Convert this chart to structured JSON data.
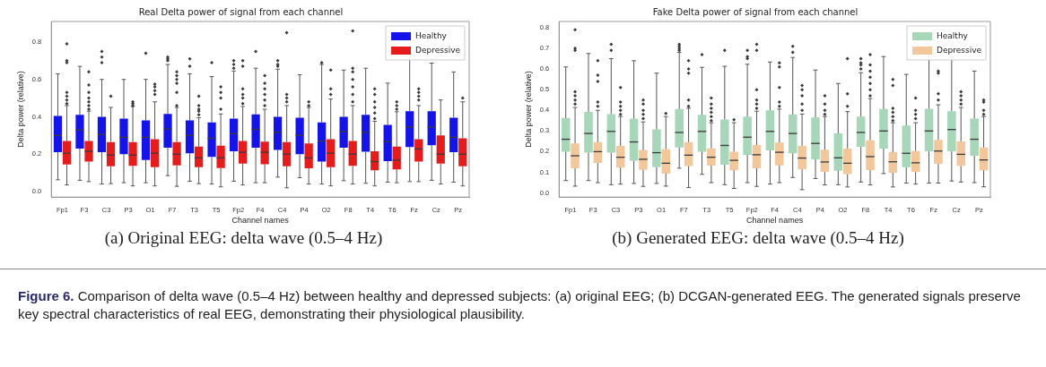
{
  "chart_data": [
    {
      "type": "box",
      "title": "Real Delta power of signal from each channel",
      "xlabel": "Channel names",
      "ylabel": "Delta power (relative)",
      "categories": [
        "Fp1",
        "F3",
        "C3",
        "P3",
        "O1",
        "F7",
        "T3",
        "T5",
        "Fp2",
        "F4",
        "C4",
        "P4",
        "O2",
        "F8",
        "T4",
        "T6",
        "Fz",
        "Cz",
        "Pz"
      ],
      "ylim": [
        -0.03,
        0.91
      ],
      "yticks": [
        {
          "value": 0,
          "label": "0.0"
        },
        {
          "value": 0.2,
          "label": "0.2"
        },
        {
          "value": 0.4,
          "label": "0.4"
        },
        {
          "value": 0.6,
          "label": "0.6"
        },
        {
          "value": 0.8,
          "label": "0.8"
        }
      ],
      "legend": "top right",
      "grid": false,
      "series": [
        {
          "name": "Healthy",
          "color": "#1414e8",
          "boxes": [
            {
              "low": 0.063,
              "q1": 0.21,
              "median": 0.3,
              "q3": 0.405,
              "high": 0.63
            },
            {
              "low": 0.06,
              "q1": 0.23,
              "median": 0.33,
              "q3": 0.41,
              "high": 0.67
            },
            {
              "low": 0.04,
              "q1": 0.21,
              "median": 0.305,
              "q3": 0.4,
              "high": 0.6,
              "outliers": [
                0.69,
                0.72,
                0.75
              ]
            },
            {
              "low": 0.047,
              "q1": 0.2,
              "median": 0.29,
              "q3": 0.39,
              "high": 0.6
            },
            {
              "low": 0.047,
              "q1": 0.168,
              "median": 0.29,
              "q3": 0.38,
              "high": 0.6,
              "outliers": [
                0.74
              ]
            },
            {
              "low": 0.085,
              "q1": 0.235,
              "median": 0.335,
              "q3": 0.415,
              "high": 0.68,
              "outliers": [
                0.7,
                0.71,
                0.72
              ]
            },
            {
              "low": 0.055,
              "q1": 0.205,
              "median": 0.3,
              "q3": 0.38,
              "high": 0.63,
              "outliers": [
                0.67,
                0.71
              ]
            },
            {
              "low": 0.04,
              "q1": 0.185,
              "median": 0.285,
              "q3": 0.37,
              "high": 0.615,
              "outliers": [
                0.69
              ]
            },
            {
              "low": 0.055,
              "q1": 0.215,
              "median": 0.31,
              "q3": 0.39,
              "high": 0.645,
              "outliers": [
                0.66,
                0.68,
                0.7
              ]
            },
            {
              "low": 0.047,
              "q1": 0.235,
              "median": 0.333,
              "q3": 0.413,
              "high": 0.66,
              "outliers": [
                0.75
              ]
            },
            {
              "low": 0.077,
              "q1": 0.223,
              "median": 0.317,
              "q3": 0.4,
              "high": 0.655,
              "outliers": [
                0.67,
                0.68,
                0.7
              ]
            },
            {
              "low": 0.074,
              "q1": 0.2,
              "median": 0.3,
              "q3": 0.395,
              "high": 0.625
            },
            {
              "low": 0.04,
              "q1": 0.16,
              "median": 0.27,
              "q3": 0.37,
              "high": 0.68,
              "outliers": [
                0.69
              ]
            },
            {
              "low": 0.058,
              "q1": 0.235,
              "median": 0.32,
              "q3": 0.4,
              "high": 0.65
            },
            {
              "low": 0.044,
              "q1": 0.213,
              "median": 0.317,
              "q3": 0.41,
              "high": 0.66
            },
            {
              "low": 0.05,
              "q1": 0.163,
              "median": 0.267,
              "q3": 0.357,
              "high": 0.58
            },
            {
              "low": 0.053,
              "q1": 0.238,
              "median": 0.345,
              "q3": 0.43,
              "high": 0.718
            },
            {
              "low": 0.06,
              "q1": 0.248,
              "median": 0.345,
              "q3": 0.43,
              "high": 0.687
            },
            {
              "low": 0.05,
              "q1": 0.21,
              "median": 0.29,
              "q3": 0.395,
              "high": 0.64
            }
          ]
        },
        {
          "name": "Depressive",
          "color": "#e51c1c",
          "boxes": [
            {
              "low": 0.035,
              "q1": 0.145,
              "median": 0.205,
              "q3": 0.27,
              "high": 0.46,
              "outliers": [
                0.47,
                0.49,
                0.51,
                0.53,
                0.69,
                0.7,
                0.79
              ]
            },
            {
              "low": 0.053,
              "q1": 0.16,
              "median": 0.215,
              "q3": 0.27,
              "high": 0.43,
              "outliers": [
                0.44,
                0.46,
                0.48,
                0.5,
                0.53,
                0.57,
                0.64
              ]
            },
            {
              "low": 0.042,
              "q1": 0.135,
              "median": 0.195,
              "q3": 0.265,
              "high": 0.45,
              "outliers": [
                0.51
              ]
            },
            {
              "low": 0.03,
              "q1": 0.138,
              "median": 0.195,
              "q3": 0.265,
              "high": 0.455,
              "outliers": [
                0.46,
                0.47,
                0.48
              ]
            },
            {
              "low": 0.03,
              "q1": 0.13,
              "median": 0.205,
              "q3": 0.28,
              "high": 0.48,
              "outliers": [
                0.52,
                0.54,
                0.56,
                0.575
              ]
            },
            {
              "low": 0.028,
              "q1": 0.14,
              "median": 0.2,
              "q3": 0.265,
              "high": 0.45,
              "outliers": [
                0.46,
                0.53,
                0.58,
                0.6,
                0.62,
                0.64
              ]
            },
            {
              "low": 0.042,
              "q1": 0.13,
              "median": 0.18,
              "q3": 0.24,
              "high": 0.395,
              "outliers": [
                0.41,
                0.43,
                0.44,
                0.46,
                0.51
              ]
            },
            {
              "low": 0.025,
              "q1": 0.125,
              "median": 0.18,
              "q3": 0.245,
              "high": 0.415,
              "outliers": [
                0.44,
                0.5,
                0.53,
                0.56
              ]
            },
            {
              "low": 0.035,
              "q1": 0.15,
              "median": 0.21,
              "q3": 0.27,
              "high": 0.455,
              "outliers": [
                0.47,
                0.5,
                0.52,
                0.55,
                0.67,
                0.7
              ]
            },
            {
              "low": 0.047,
              "q1": 0.146,
              "median": 0.21,
              "q3": 0.267,
              "high": 0.44,
              "outliers": [
                0.46,
                0.49,
                0.52,
                0.55,
                0.58,
                0.62
              ]
            },
            {
              "low": 0.02,
              "q1": 0.135,
              "median": 0.2,
              "q3": 0.265,
              "high": 0.46,
              "outliers": [
                0.48,
                0.5,
                0.52,
                0.85
              ]
            },
            {
              "low": 0.04,
              "q1": 0.124,
              "median": 0.18,
              "q3": 0.257,
              "high": 0.45,
              "outliers": [
                0.46,
                0.48
              ]
            },
            {
              "low": 0.03,
              "q1": 0.13,
              "median": 0.205,
              "q3": 0.28,
              "high": 0.495,
              "outliers": [
                0.52,
                0.55,
                0.65
              ]
            },
            {
              "low": 0.04,
              "q1": 0.137,
              "median": 0.2,
              "q3": 0.27,
              "high": 0.46,
              "outliers": [
                0.48,
                0.52,
                0.56,
                0.6,
                0.64,
                0.66,
                0.86
              ]
            },
            {
              "low": 0.03,
              "q1": 0.113,
              "median": 0.16,
              "q3": 0.215,
              "high": 0.376,
              "outliers": [
                0.39,
                0.42,
                0.45,
                0.48,
                0.52,
                0.55
              ]
            },
            {
              "low": 0.047,
              "q1": 0.118,
              "median": 0.168,
              "q3": 0.24,
              "high": 0.427,
              "outliers": [
                0.44,
                0.46,
                0.48
              ]
            },
            {
              "low": 0.053,
              "q1": 0.16,
              "median": 0.228,
              "q3": 0.28,
              "high": 0.46,
              "outliers": [
                0.49,
                0.51,
                0.53,
                0.55
              ]
            },
            {
              "low": 0.04,
              "q1": 0.15,
              "median": 0.2,
              "q3": 0.3,
              "high": 0.49
            },
            {
              "low": 0.03,
              "q1": 0.135,
              "median": 0.2,
              "q3": 0.285,
              "high": 0.48,
              "outliers": [
                0.5
              ]
            }
          ]
        }
      ],
      "annotations": [
        "(a) Original EEG: delta wave (0.5–4 Hz)",
        "Figure 6.",
        "Comparison of delta wave (0.5–4 Hz) between healthy and depressed subjects: (a) original EEG; (b) DCGAN-generated EEG. The generated signals preserve key spectral characteristics of real EEG, demonstrating their physiological plausibility."
      ]
    },
    {
      "type": "box",
      "title": "Fake Delta power of signal from each channel",
      "xlabel": "Channel names",
      "ylabel": "Delta power (relative)",
      "categories": [
        "Fp1",
        "F3",
        "C3",
        "P3",
        "O1",
        "F7",
        "T3",
        "T5",
        "Fp2",
        "F4",
        "C4",
        "P4",
        "O2",
        "F8",
        "T4",
        "T6",
        "Fz",
        "Cz",
        "Pz"
      ],
      "ylim": [
        -0.02,
        0.83
      ],
      "yticks": [
        {
          "value": 0,
          "label": "0.0"
        },
        {
          "value": 0.1,
          "label": "0.1"
        },
        {
          "value": 0.2,
          "label": "0.2"
        },
        {
          "value": 0.3,
          "label": "0.3"
        },
        {
          "value": 0.4,
          "label": "0.4"
        },
        {
          "value": 0.5,
          "label": "0.5"
        },
        {
          "value": 0.6,
          "label": "0.6"
        },
        {
          "value": 0.7,
          "label": "0.7"
        },
        {
          "value": 0.8,
          "label": "0.8"
        }
      ],
      "legend": "top right",
      "grid": false,
      "series": [
        {
          "name": "Healthy",
          "color": "#a7d6b9",
          "boxes": [
            {
              "low": 0.06,
              "q1": 0.2,
              "median": 0.26,
              "q3": 0.363,
              "high": 0.61
            },
            {
              "low": 0.06,
              "q1": 0.195,
              "median": 0.288,
              "q3": 0.392,
              "high": 0.675
            },
            {
              "low": 0.04,
              "q1": 0.195,
              "median": 0.298,
              "q3": 0.382,
              "high": 0.65,
              "outliers": [
                0.69,
                0.72
              ]
            },
            {
              "low": 0.046,
              "q1": 0.156,
              "median": 0.247,
              "q3": 0.36,
              "high": 0.64
            },
            {
              "low": 0.046,
              "q1": 0.125,
              "median": 0.195,
              "q3": 0.308,
              "high": 0.58
            },
            {
              "low": 0.12,
              "q1": 0.22,
              "median": 0.293,
              "q3": 0.407,
              "high": 0.68,
              "outliers": [
                0.69,
                0.7,
                0.71,
                0.72
              ]
            },
            {
              "low": 0.09,
              "q1": 0.2,
              "median": 0.298,
              "q3": 0.378,
              "high": 0.608,
              "outliers": [
                0.67
              ]
            },
            {
              "low": 0.04,
              "q1": 0.137,
              "median": 0.23,
              "q3": 0.356,
              "high": 0.613,
              "outliers": [
                0.69
              ]
            },
            {
              "low": 0.05,
              "q1": 0.185,
              "median": 0.27,
              "q3": 0.37,
              "high": 0.623,
              "outliers": [
                0.65,
                0.66,
                0.69
              ]
            },
            {
              "low": 0.043,
              "q1": 0.206,
              "median": 0.298,
              "q3": 0.4,
              "high": 0.634
            },
            {
              "low": 0.075,
              "q1": 0.192,
              "median": 0.288,
              "q3": 0.38,
              "high": 0.656,
              "outliers": [
                0.68,
                0.71
              ]
            },
            {
              "low": 0.07,
              "q1": 0.163,
              "median": 0.24,
              "q3": 0.365,
              "high": 0.595
            },
            {
              "low": 0.04,
              "q1": 0.108,
              "median": 0.17,
              "q3": 0.288,
              "high": 0.53
            },
            {
              "low": 0.053,
              "q1": 0.223,
              "median": 0.293,
              "q3": 0.37,
              "high": 0.582,
              "outliers": [
                0.6,
                0.62,
                0.63,
                0.65
              ]
            },
            {
              "low": 0.094,
              "q1": 0.215,
              "median": 0.3,
              "q3": 0.406,
              "high": 0.66
            },
            {
              "low": 0.048,
              "q1": 0.125,
              "median": 0.192,
              "q3": 0.326,
              "high": 0.574
            },
            {
              "low": 0.048,
              "q1": 0.202,
              "median": 0.3,
              "q3": 0.408,
              "high": 0.71
            },
            {
              "low": 0.058,
              "q1": 0.202,
              "median": 0.307,
              "q3": 0.396,
              "high": 0.657,
              "outliers": [
                0.69
              ]
            },
            {
              "low": 0.05,
              "q1": 0.18,
              "median": 0.26,
              "q3": 0.36,
              "high": 0.59
            }
          ]
        },
        {
          "name": "Depressive",
          "color": "#f3c79c",
          "boxes": [
            {
              "low": 0.033,
              "q1": 0.12,
              "median": 0.18,
              "q3": 0.24,
              "high": 0.414,
              "outliers": [
                0.43,
                0.45,
                0.47,
                0.49,
                0.69,
                0.7,
                0.79
              ]
            },
            {
              "low": 0.05,
              "q1": 0.145,
              "median": 0.2,
              "q3": 0.246,
              "high": 0.4,
              "outliers": [
                0.42,
                0.44,
                0.54,
                0.57,
                0.64
              ]
            },
            {
              "low": 0.043,
              "q1": 0.123,
              "median": 0.173,
              "q3": 0.228,
              "high": 0.37,
              "outliers": [
                0.38,
                0.4,
                0.42,
                0.44,
                0.51
              ]
            },
            {
              "low": 0.032,
              "q1": 0.112,
              "median": 0.163,
              "q3": 0.208,
              "high": 0.344,
              "outliers": [
                0.36,
                0.38,
                0.4,
                0.43,
                0.45
              ]
            },
            {
              "low": 0.033,
              "q1": 0.094,
              "median": 0.144,
              "q3": 0.212,
              "high": 0.37,
              "outliers": [
                0.385
              ]
            },
            {
              "low": 0.026,
              "q1": 0.13,
              "median": 0.183,
              "q3": 0.246,
              "high": 0.41,
              "outliers": [
                0.42,
                0.45,
                0.58,
                0.6,
                0.64
              ]
            },
            {
              "low": 0.05,
              "q1": 0.133,
              "median": 0.173,
              "q3": 0.216,
              "high": 0.34,
              "outliers": [
                0.35,
                0.37,
                0.39,
                0.41,
                0.43,
                0.46
              ]
            },
            {
              "low": 0.022,
              "q1": 0.11,
              "median": 0.158,
              "q3": 0.2,
              "high": 0.34,
              "outliers": [
                0.355
              ]
            },
            {
              "low": 0.032,
              "q1": 0.12,
              "median": 0.185,
              "q3": 0.232,
              "high": 0.396,
              "outliers": [
                0.41,
                0.43,
                0.45,
                0.5,
                0.69,
                0.72
              ]
            },
            {
              "low": 0.05,
              "q1": 0.134,
              "median": 0.197,
              "q3": 0.244,
              "high": 0.406,
              "outliers": [
                0.42,
                0.44,
                0.51,
                0.61,
                0.63
              ]
            },
            {
              "low": 0.016,
              "q1": 0.115,
              "median": 0.169,
              "q3": 0.228,
              "high": 0.382,
              "outliers": [
                0.4,
                0.43,
                0.47,
                0.5,
                0.52
              ]
            },
            {
              "low": 0.039,
              "q1": 0.102,
              "median": 0.15,
              "q3": 0.209,
              "high": 0.37,
              "outliers": [
                0.38,
                0.4,
                0.43,
                0.47
              ]
            },
            {
              "low": 0.029,
              "q1": 0.091,
              "median": 0.144,
              "q3": 0.215,
              "high": 0.394,
              "outliers": [
                0.42,
                0.48,
                0.65
              ]
            },
            {
              "low": 0.039,
              "q1": 0.111,
              "median": 0.176,
              "q3": 0.255,
              "high": 0.457,
              "outliers": [
                0.47,
                0.5,
                0.53,
                0.56,
                0.59,
                0.62,
                0.67
              ]
            },
            {
              "low": 0.029,
              "q1": 0.098,
              "median": 0.151,
              "q3": 0.197,
              "high": 0.34,
              "outliers": [
                0.35,
                0.37,
                0.39,
                0.41,
                0.52,
                0.55
              ]
            },
            {
              "low": 0.043,
              "q1": 0.102,
              "median": 0.146,
              "q3": 0.203,
              "high": 0.34,
              "outliers": [
                0.36,
                0.38,
                0.4,
                0.46
              ]
            },
            {
              "low": 0.048,
              "q1": 0.141,
              "median": 0.203,
              "q3": 0.257,
              "high": 0.427,
              "outliers": [
                0.45,
                0.48,
                0.58,
                0.59
              ]
            },
            {
              "low": 0.053,
              "q1": 0.131,
              "median": 0.187,
              "q3": 0.25,
              "high": 0.414,
              "outliers": [
                0.43,
                0.45,
                0.47,
                0.49
              ]
            },
            {
              "low": 0.03,
              "q1": 0.11,
              "median": 0.16,
              "q3": 0.22,
              "high": 0.37,
              "outliers": [
                0.38,
                0.4,
                0.44,
                0.45
              ]
            }
          ]
        }
      ],
      "annotations": [
        "(b) Generated EEG: delta wave (0.5–4 Hz)"
      ]
    }
  ]
}
